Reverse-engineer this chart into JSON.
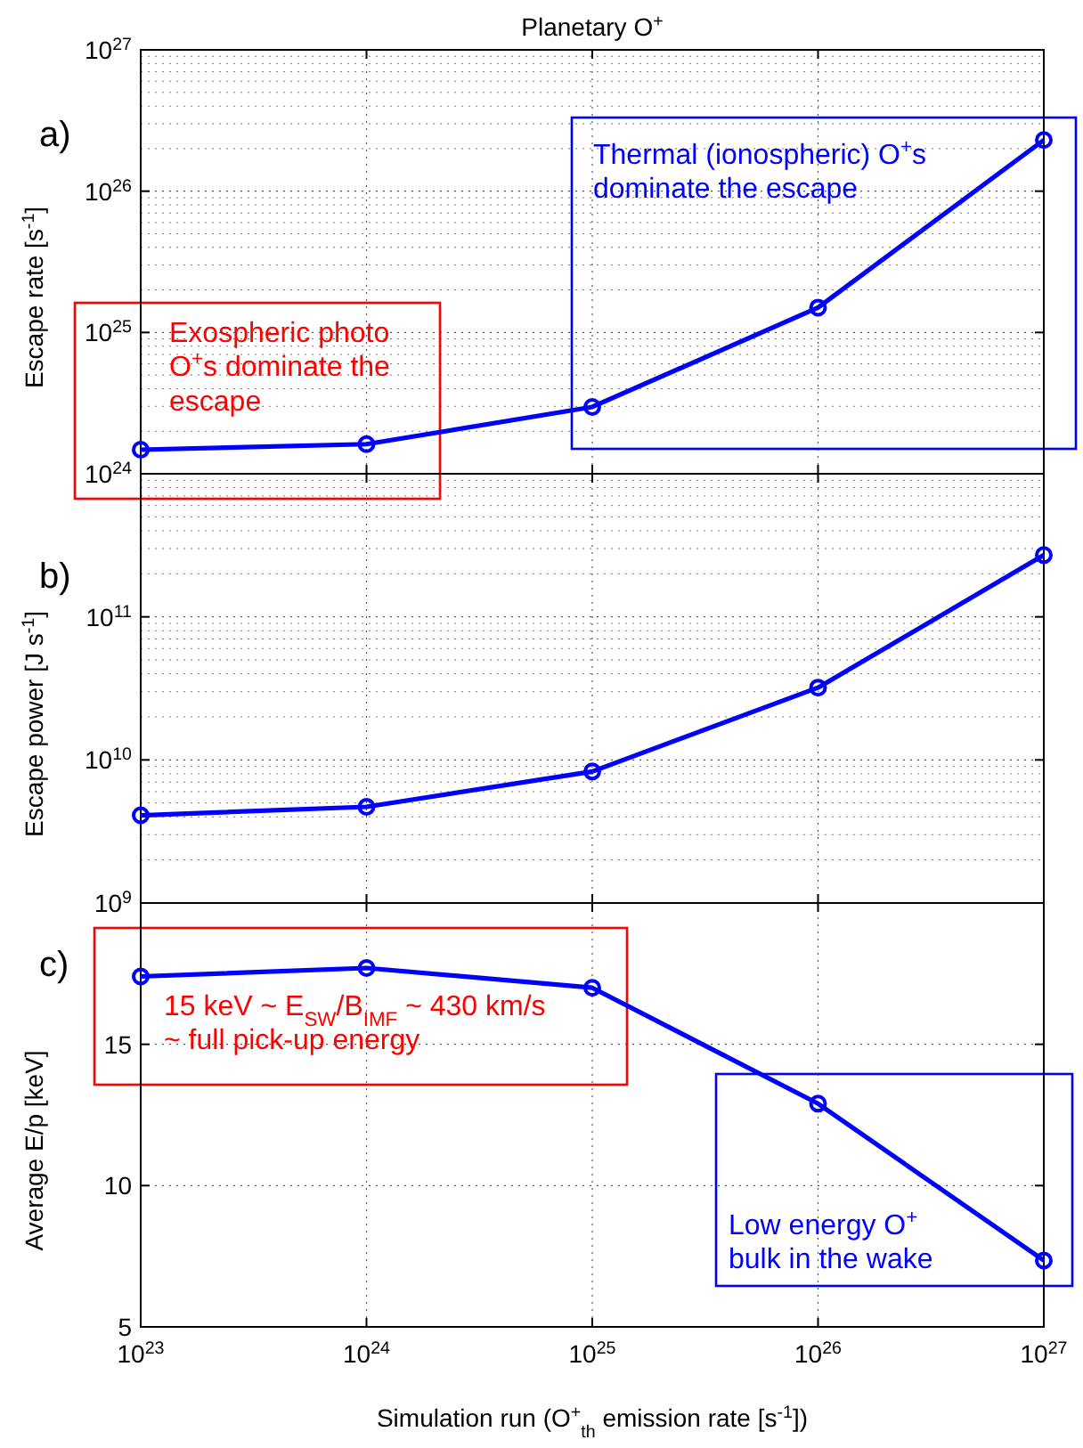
{
  "chart_data": [
    {
      "type": "line",
      "title": "Planetary O$^{+}$",
      "ylabel": "Escape rate [s$^{-1}$]",
      "annotations": [
        "a)",
        "Exospheric photo\nO$^{+}$s dominate the\nescape",
        "Thermal (ionospheric) O$^{+}$s\ndominate the escape"
      ],
      "x": [
        1e+23,
        1e+24,
        1e+25,
        1e+26,
        1e+27
      ],
      "series": [
        {
          "color": "#0000ff",
          "values": [
            1.48e+24,
            1.62e+24,
            2.97e+24,
            1.5e+25,
            2.3e+26
          ]
        }
      ],
      "log": "xy",
      "xlim": [
        1e+23,
        1e+27
      ],
      "ylim": [
        1e+24,
        1e+27
      ],
      "xticks": [
        {
          "value": 1e+23,
          "label": null
        },
        {
          "value": 1e+24,
          "label": null
        },
        {
          "value": 1e+25,
          "label": null
        },
        {
          "value": 1e+26,
          "label": null
        },
        {
          "value": 1e+27,
          "label": null
        }
      ],
      "yticks": [
        {
          "value": 1e+24,
          "label": "10$^{24}$"
        },
        {
          "value": 1e+25,
          "label": "10$^{25}$"
        },
        {
          "value": 1e+26,
          "label": "10$^{26}$"
        },
        {
          "value": 1e+27,
          "label": "10$^{27}$"
        }
      ],
      "tick_labels": "y",
      "grid": true,
      "marker": "circle",
      "line_style": "solid"
    },
    {
      "type": "line",
      "ylabel": "Escape power [J s$^{-1}$]",
      "annotations": [
        "b)"
      ],
      "x": [
        1e+23,
        1e+24,
        1e+25,
        1e+26,
        1e+27
      ],
      "series": [
        {
          "color": "#0000ff",
          "values": [
            4100000000.0,
            4700000000.0,
            8300000000.0,
            32000000000.0,
            270000000000.0
          ]
        }
      ],
      "log": "xy",
      "xlim": [
        1e+23,
        1e+27
      ],
      "ylim": [
        1000000000.0,
        1000000000000.0
      ],
      "xticks": [
        {
          "value": 1e+23,
          "label": null
        },
        {
          "value": 1e+24,
          "label": null
        },
        {
          "value": 1e+25,
          "label": null
        },
        {
          "value": 1e+26,
          "label": null
        },
        {
          "value": 1e+27,
          "label": null
        }
      ],
      "yticks": [
        {
          "value": 1000000000.0,
          "label": "10$^{9}$"
        },
        {
          "value": 10000000000.0,
          "label": "10$^{10}$"
        },
        {
          "value": 100000000000.0,
          "label": "10$^{11}$"
        }
      ],
      "tick_labels": "y",
      "grid": true,
      "marker": "circle",
      "line_style": "solid"
    },
    {
      "type": "line",
      "ylabel": "Average E/p [keV]",
      "xlabel": "Simulation run (O$^{+}$$_{th}$ emission rate [s$^{-1}$])",
      "annotations": [
        "c)",
        "15 keV ~ E$_{SW}$/B$_{IMF}$ ~ 430 km/s\n~ full pick-up energy",
        "Low energy O$^{+}$\nbulk  in the wake"
      ],
      "x": [
        1e+23,
        1e+24,
        1e+25,
        1e+26,
        1e+27
      ],
      "series": [
        {
          "color": "#0000ff",
          "values": [
            17.4,
            17.7,
            17.0,
            12.9,
            7.35
          ]
        }
      ],
      "log": "x",
      "xlim": [
        1e+23,
        1e+27
      ],
      "ylim": [
        5,
        20
      ],
      "xticks": [
        {
          "value": 1e+23,
          "label": "10$^{23}$"
        },
        {
          "value": 1e+24,
          "label": "10$^{24}$"
        },
        {
          "value": 1e+25,
          "label": "10$^{25}$"
        },
        {
          "value": 1e+26,
          "label": "10$^{26}$"
        },
        {
          "value": 1e+27,
          "label": "10$^{27}$"
        }
      ],
      "yticks": [
        5,
        10,
        15
      ],
      "grid": true,
      "marker": "circle",
      "line_style": "solid"
    }
  ]
}
